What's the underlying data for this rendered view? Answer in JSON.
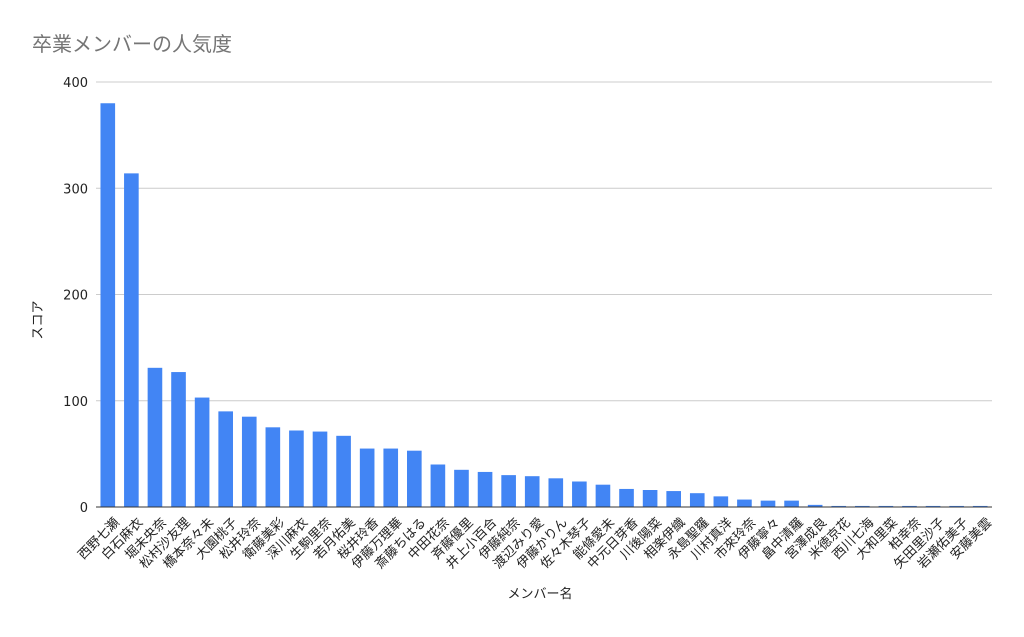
{
  "chart_data": {
    "type": "bar",
    "title": "卒業メンバーの人気度",
    "xlabel": "メンバー名",
    "ylabel": "スコア",
    "ylim": [
      0,
      400
    ],
    "yticks": [
      0,
      100,
      200,
      300,
      400
    ],
    "grid": true,
    "legend": "none",
    "colors": {
      "bar": "#4285f4",
      "grid": "#cccccc",
      "axis": "#333333",
      "tick_label": "#222222",
      "axis_label": "#222222",
      "title": "#757575"
    },
    "categories": [
      "西野七瀬",
      "白石麻衣",
      "堀未央奈",
      "松村沙友理",
      "橋本奈々未",
      "大園桃子",
      "松井玲奈",
      "衛藤美彩",
      "深川麻衣",
      "生駒里奈",
      "若月佑美",
      "桜井玲香",
      "伊藤万理華",
      "斎藤ちはる",
      "中田花奈",
      "斉藤優里",
      "井上小百合",
      "伊藤純奈",
      "渡辺みり愛",
      "伊藤かりん",
      "佐々木琴子",
      "能條愛未",
      "中元日芽香",
      "川後陽菜",
      "相楽伊織",
      "永島聖羅",
      "川村真洋",
      "市來玲奈",
      "伊藤寧々",
      "畠中清羅",
      "宮澤成良",
      "米徳京花",
      "西川七海",
      "大和里菜",
      "柏幸奈",
      "矢田里沙子",
      "岩瀬佑美子",
      "安藤美雲"
    ],
    "values": [
      380,
      314,
      131,
      127,
      103,
      90,
      85,
      75,
      72,
      71,
      67,
      55,
      55,
      53,
      40,
      35,
      33,
      30,
      29,
      27,
      24,
      21,
      17,
      16,
      15,
      13,
      10,
      7,
      6,
      6,
      2,
      1,
      1,
      1,
      1,
      1,
      1,
      1
    ]
  }
}
